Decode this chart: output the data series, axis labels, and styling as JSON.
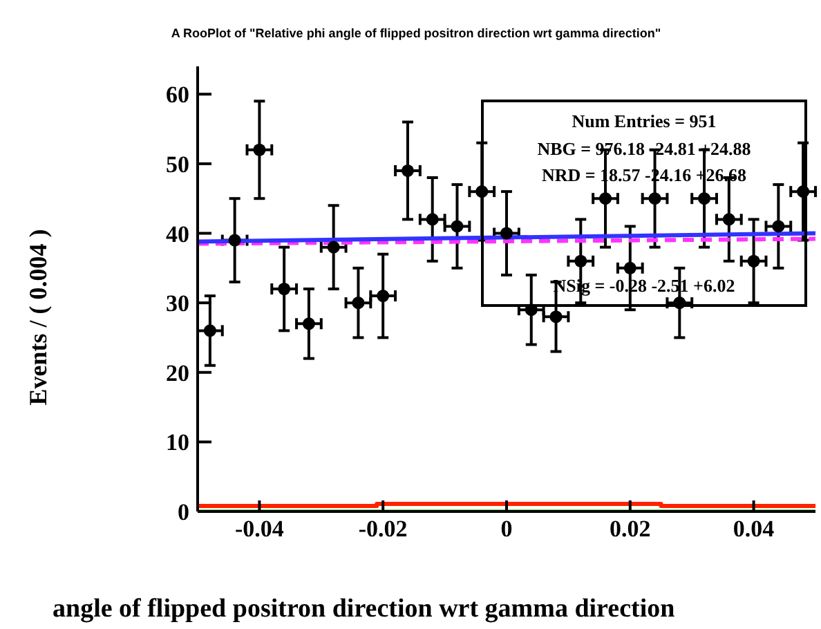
{
  "chart_data": {
    "type": "scatter",
    "title": "A RooPlot of \"Relative phi angle of flipped positron direction wrt gamma direction\"",
    "xlabel": "angle of flipped positron direction wrt gamma direction",
    "ylabel": "Events / ( 0.004 )",
    "xlim": [
      -0.05,
      0.05
    ],
    "xticks": [
      -0.04,
      -0.02,
      0,
      0.02,
      0.04
    ],
    "ylim": [
      0,
      64
    ],
    "yticks": [
      0,
      10,
      20,
      30,
      40,
      50,
      60
    ],
    "grid": false,
    "legend": false,
    "series": [
      {
        "marker": "circle",
        "color": "#000000",
        "x": [
          -0.048,
          -0.044,
          -0.04,
          -0.036,
          -0.032,
          -0.028,
          -0.024,
          -0.02,
          -0.016,
          -0.012,
          -0.008,
          -0.004,
          0,
          0.004,
          0.008,
          0.012,
          0.016,
          0.02,
          0.024,
          0.028,
          0.032,
          0.036,
          0.04,
          0.044,
          0.048
        ],
        "values": [
          26,
          39,
          52,
          32,
          27,
          38,
          30,
          31,
          49,
          42,
          41,
          46,
          40,
          29,
          28,
          36,
          45,
          35,
          45,
          30,
          45,
          42,
          36,
          41,
          46
        ],
        "errors": [
          5,
          6,
          7,
          6,
          5,
          6,
          5,
          6,
          7,
          6,
          6,
          7,
          6,
          5,
          5,
          6,
          7,
          6,
          7,
          5,
          7,
          6,
          6,
          6,
          7
        ],
        "xerrors": [
          0.002,
          0.002,
          0.002,
          0.002,
          0.002,
          0.002,
          0.002,
          0.002,
          0.002,
          0.002,
          0.002,
          0.002,
          0.002,
          0.002,
          0.002,
          0.002,
          0.002,
          0.002,
          0.002,
          0.002,
          0.002,
          0.002,
          0.002,
          0.002,
          0.002
        ]
      },
      {
        "type": "line",
        "color": "#ff33ff",
        "line_style": "dashed",
        "x": [
          -0.05,
          0.05
        ],
        "values": [
          38.5,
          39.2
        ]
      },
      {
        "type": "line",
        "color": "#3333ff",
        "x": [
          -0.05,
          0.05
        ],
        "values": [
          38.8,
          40
        ]
      },
      {
        "type": "step",
        "color": "#ff2200",
        "x": [
          -0.05,
          -0.021,
          0.025,
          0.05
        ],
        "values": [
          0.8,
          1.1,
          0.8,
          0.8
        ]
      },
      {
        "type": "line",
        "color": "#66cc55",
        "x": [
          -0.05,
          0.05
        ],
        "values": [
          0,
          0
        ]
      }
    ],
    "annotations": [
      "Num Entries = 951",
      "NBG = 976.18 -24.81 +24.88",
      "NRD = 18.57 -24.16 +26.68",
      "NSig = -0.28 -2.51 +6.02"
    ]
  }
}
